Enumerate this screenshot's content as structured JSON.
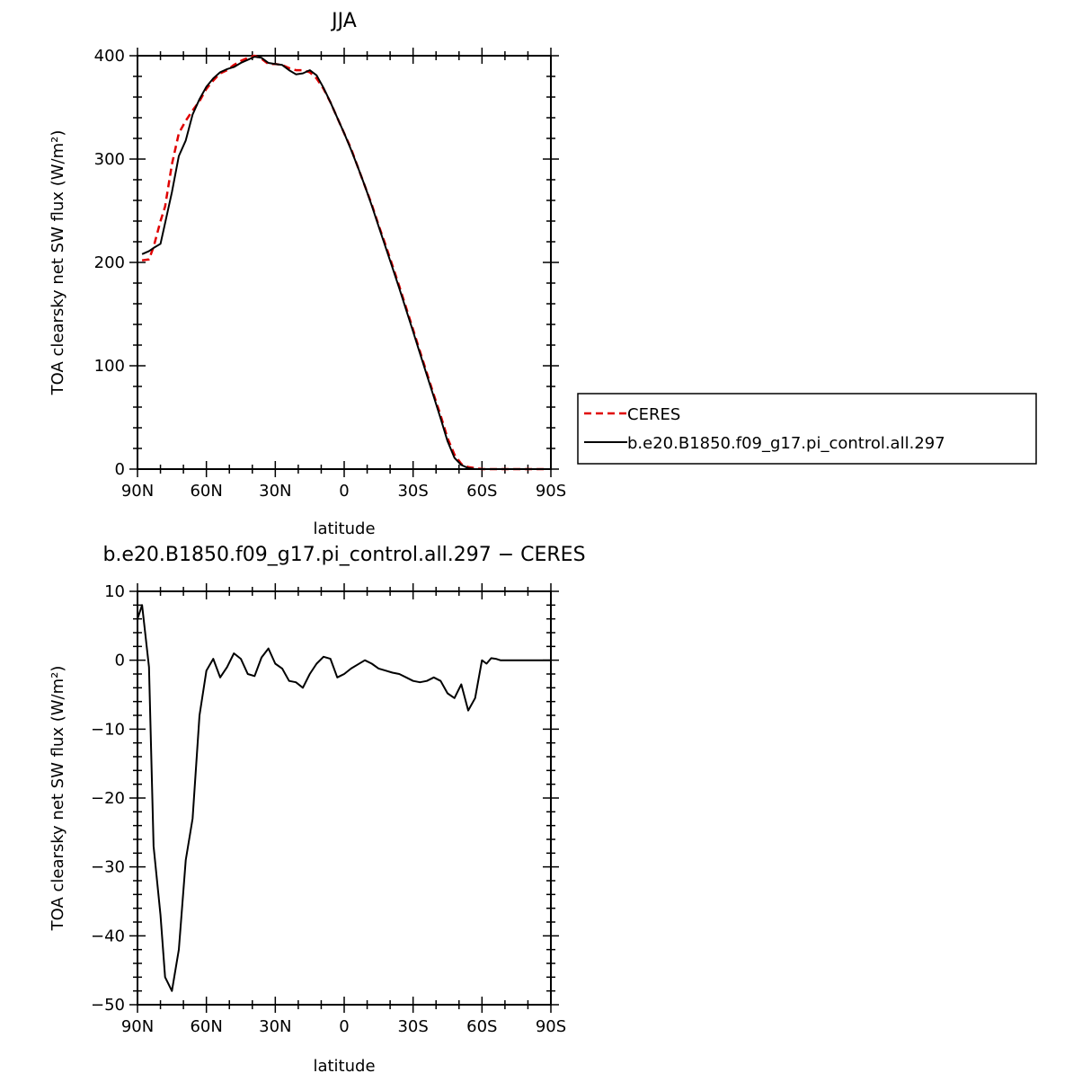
{
  "chart_data": [
    {
      "type": "line",
      "title": "JJA",
      "xlabel": "latitude",
      "ylabel": "TOA clearsky net SW flux (W/m²)",
      "x_ticks": [
        "90N",
        "60N",
        "30N",
        "0",
        "30S",
        "60S",
        "90S"
      ],
      "y_ticks": [
        "0",
        "100",
        "200",
        "300",
        "400"
      ],
      "xlim": [
        90,
        -90
      ],
      "ylim": [
        0,
        400
      ],
      "grid": false,
      "legend_placement": "right",
      "series": [
        {
          "name": "CERES",
          "color": "#e00000",
          "style": "dashed",
          "x": [
            88,
            85,
            83,
            80,
            78,
            75,
            72,
            69,
            66,
            63,
            60,
            57,
            54,
            51,
            48,
            45,
            42,
            39,
            36,
            33,
            30,
            27,
            24,
            21,
            18,
            15,
            12,
            9,
            6,
            3,
            0,
            -3,
            -6,
            -9,
            -12,
            -15,
            -18,
            -21,
            -24,
            -27,
            -30,
            -33,
            -36,
            -39,
            -42,
            -45,
            -48,
            -51,
            -54,
            -57,
            -60,
            -63,
            -66,
            -69,
            -72,
            -75,
            -78,
            -81,
            -84,
            -87
          ],
          "y": [
            202,
            203,
            215,
            240,
            254,
            295,
            325,
            337,
            347,
            356,
            368,
            376,
            383,
            386,
            391,
            395,
            398,
            400,
            397,
            392,
            392,
            391,
            388,
            386,
            386,
            384,
            378,
            368,
            355,
            340,
            325,
            310,
            292,
            274,
            256,
            236,
            217,
            197,
            177,
            156,
            135,
            114,
            93,
            72,
            52,
            30,
            14,
            5,
            2,
            1,
            0,
            0,
            0,
            0,
            0,
            0,
            0,
            0,
            0,
            0
          ]
        },
        {
          "name": "b.e20.B1850.f09_g17.pi_control.all.297",
          "color": "#000000",
          "style": "solid",
          "x": [
            88,
            85,
            83,
            80,
            78,
            75,
            72,
            69,
            66,
            63,
            60,
            57,
            54,
            51,
            48,
            45,
            42,
            39,
            36,
            33,
            30,
            27,
            24,
            21,
            18,
            15,
            12,
            9,
            6,
            3,
            0,
            -3,
            -6,
            -9,
            -12,
            -15,
            -18,
            -21,
            -24,
            -27,
            -30,
            -33,
            -36,
            -39,
            -42,
            -45,
            -48,
            -51,
            -54,
            -57,
            -60,
            -63,
            -66,
            -69,
            -72,
            -75,
            -78,
            -81,
            -84,
            -87
          ],
          "y": [
            208,
            211,
            214,
            218,
            238,
            268,
            303,
            318,
            343,
            358,
            370,
            378,
            384,
            387,
            389,
            393,
            396,
            399,
            398,
            393,
            392,
            391,
            386,
            382,
            383,
            386,
            381,
            369,
            355,
            340,
            325,
            309,
            292,
            274,
            255,
            235,
            215,
            195,
            175,
            154,
            133,
            112,
            91,
            70,
            49,
            27,
            11,
            4,
            1,
            0,
            0,
            0,
            0,
            0,
            0,
            0,
            0,
            0,
            0,
            0
          ]
        }
      ]
    },
    {
      "type": "line",
      "title": "b.e20.B1850.f09_g17.pi_control.all.297 − CERES",
      "xlabel": "latitude",
      "ylabel": "TOA clearsky net SW flux (W/m²)",
      "x_ticks": [
        "90N",
        "60N",
        "30N",
        "0",
        "30S",
        "60S",
        "90S"
      ],
      "y_ticks": [
        "10",
        "0",
        "−10",
        "−20",
        "−30",
        "−40",
        "−50"
      ],
      "xlim": [
        90,
        -90
      ],
      "ylim": [
        -50,
        10
      ],
      "grid": false,
      "series": [
        {
          "name": "",
          "color": "#000000",
          "style": "solid",
          "x": [
            90,
            88,
            85,
            83,
            80,
            78,
            75,
            72,
            69,
            66,
            63,
            60,
            57,
            54,
            51,
            48,
            45,
            42,
            39,
            36,
            33,
            30,
            27,
            24,
            21,
            18,
            15,
            12,
            9,
            6,
            3,
            0,
            -3,
            -6,
            -9,
            -12,
            -15,
            -18,
            -21,
            -24,
            -27,
            -30,
            -33,
            -36,
            -39,
            -42,
            -45,
            -48,
            -51,
            -54,
            -57,
            -60,
            -62,
            -64,
            -66,
            -68,
            -70,
            -72,
            -75,
            -78,
            -81,
            -84,
            -87,
            -90
          ],
          "y": [
            6,
            8,
            -1,
            -27,
            -37,
            -46,
            -48,
            -42,
            -29,
            -23,
            -8,
            -1.5,
            0.2,
            -2.5,
            -1,
            1,
            0.2,
            -2,
            -2.3,
            0.4,
            1.7,
            -0.5,
            -1.2,
            -3,
            -3.2,
            -4,
            -2,
            -0.5,
            0.5,
            0.2,
            -2.5,
            -2,
            -1.2,
            -0.6,
            0,
            -0.5,
            -1.2,
            -1.5,
            -1.8,
            -2,
            -2.5,
            -3,
            -3.2,
            -3,
            -2.5,
            -3,
            -4.8,
            -5.5,
            -3.5,
            -7.3,
            -5.5,
            0,
            -0.5,
            0.3,
            0.2,
            0,
            0,
            0,
            0,
            0,
            0,
            0,
            0,
            0
          ]
        }
      ]
    }
  ]
}
